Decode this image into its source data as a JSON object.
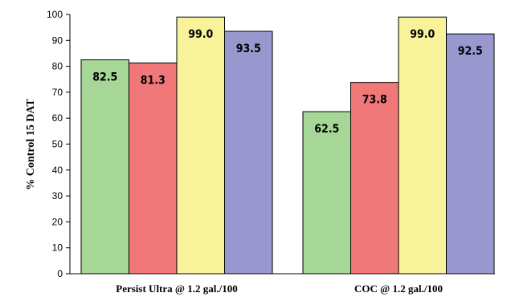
{
  "chart_data": {
    "type": "bar",
    "title": "",
    "xlabel": "",
    "ylabel": "% Control 15 DAT",
    "ylim": [
      0,
      100
    ],
    "yticks": [
      0,
      10,
      20,
      30,
      40,
      50,
      60,
      70,
      80,
      90,
      100
    ],
    "grid": false,
    "categories": [
      "Persist Ultra @ 1.2 gal./100",
      "COC @ 1.2 gal./100"
    ],
    "series": [
      {
        "color": "#a6d796",
        "values": [
          82.5,
          62.5
        ],
        "labels": [
          "82.5",
          "62.5"
        ]
      },
      {
        "color": "#f07878",
        "values": [
          81.3,
          73.8
        ],
        "labels": [
          "81.3",
          "73.8"
        ]
      },
      {
        "color": "#f8f39b",
        "values": [
          99.0,
          99.0
        ],
        "labels": [
          "99.0",
          "99.0"
        ]
      },
      {
        "color": "#9898cf",
        "values": [
          93.5,
          92.5
        ],
        "labels": [
          "93.5",
          "92.5"
        ]
      }
    ]
  }
}
